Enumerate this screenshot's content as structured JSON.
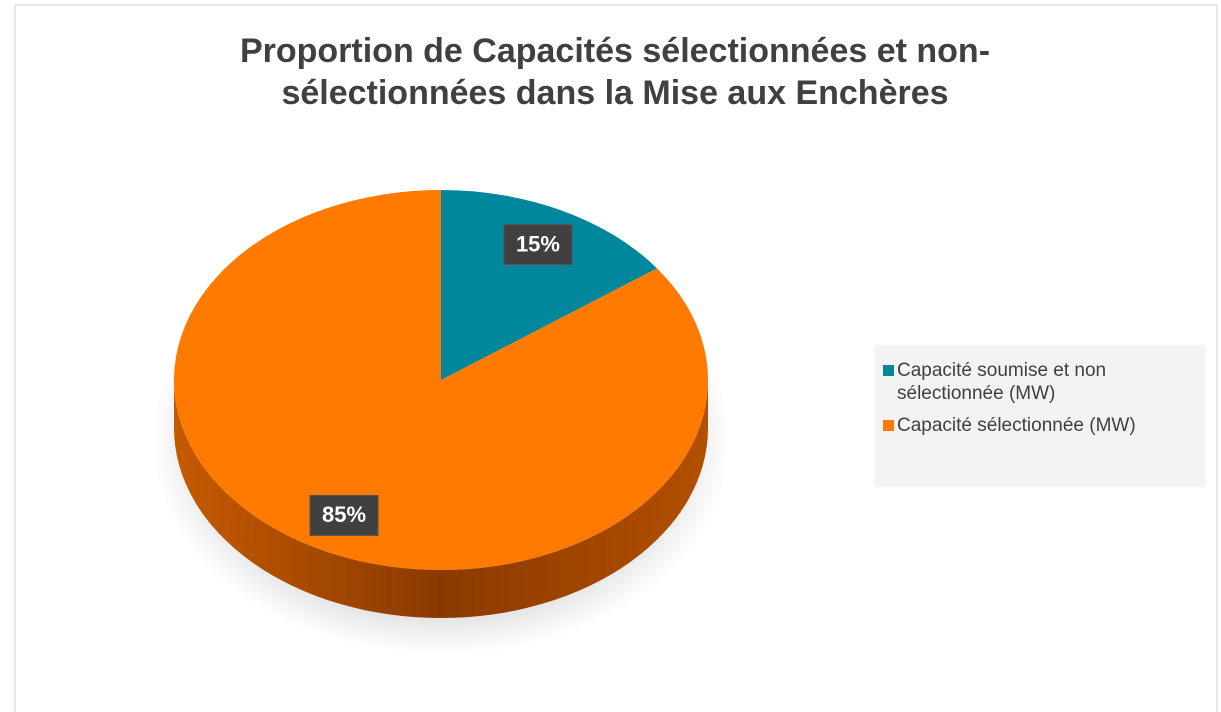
{
  "chart_data": {
    "type": "pie",
    "title": "Proportion de Capacités sélectionnées et non-sélectionnées dans la Mise aux Enchères",
    "categories": [
      "Capacité soumise et non sélectionnée (MW)",
      "Capacité sélectionnée (MW)"
    ],
    "values": [
      15,
      85
    ],
    "value_labels": [
      "15%",
      "85%"
    ],
    "colors": [
      "#00879c",
      "#ff7a00"
    ],
    "legend": "right"
  }
}
